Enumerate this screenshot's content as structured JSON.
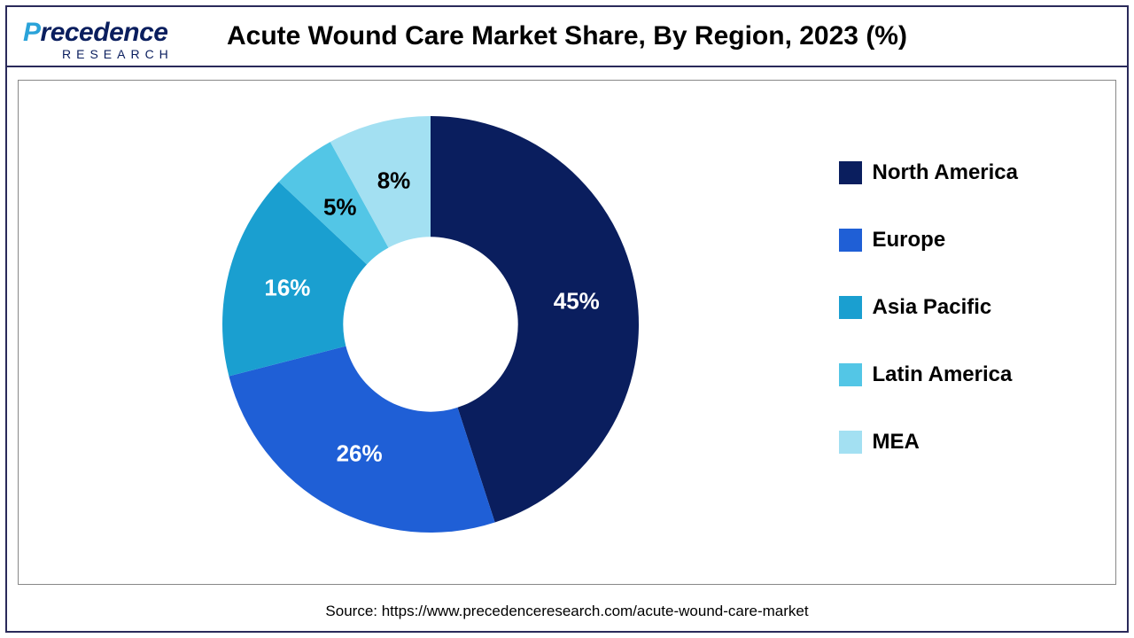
{
  "logo": {
    "text_main": "recedence",
    "text_prefix": "P",
    "text_sub": "RESEARCH"
  },
  "title": "Acute Wound Care Market Share, By Region, 2023 (%)",
  "chart": {
    "type": "donut",
    "inner_radius_ratio": 0.42,
    "background_color": "#ffffff",
    "border_color": "#888888",
    "slices": [
      {
        "label": "North America",
        "value": 45,
        "color": "#0a1e5e",
        "text_color": "#ffffff",
        "label_text": "45%"
      },
      {
        "label": "Europe",
        "value": 26,
        "color": "#1f5fd6",
        "text_color": "#ffffff",
        "label_text": "26%"
      },
      {
        "label": "Asia Pacific",
        "value": 16,
        "color": "#1a9fd0",
        "text_color": "#ffffff",
        "label_text": "16%"
      },
      {
        "label": "Latin America",
        "value": 5,
        "color": "#53c6e6",
        "text_color": "#000000",
        "label_text": "5%"
      },
      {
        "label": "MEA",
        "value": 8,
        "color": "#a3e0f2",
        "text_color": "#000000",
        "label_text": "8%"
      }
    ],
    "label_fontsize": 26,
    "label_fontweight": 700,
    "legend": {
      "position": "right",
      "fontsize": 24,
      "fontweight": 700,
      "swatch_size": 26,
      "gap": 48
    }
  },
  "source": "Source: https://www.precedenceresearch.com/acute-wound-care-market"
}
